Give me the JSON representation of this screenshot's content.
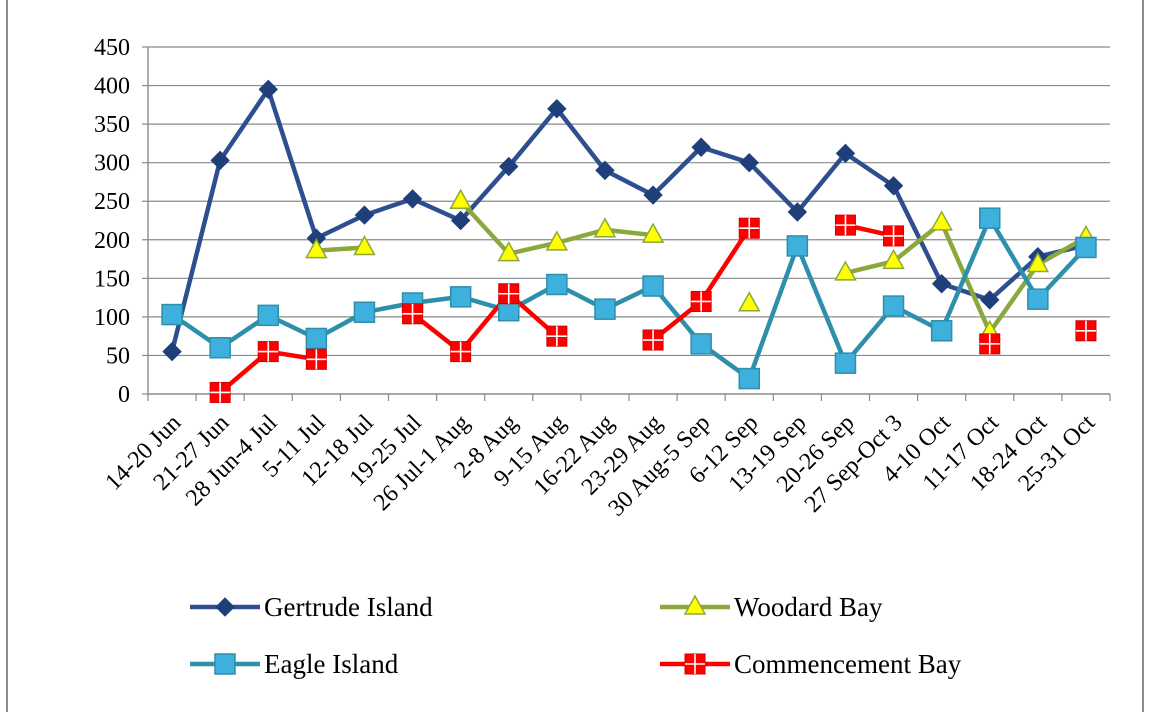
{
  "chart_data": {
    "type": "line",
    "categories": [
      "14-20 Jun",
      "21-27 Jun",
      "28 Jun-4 Jul",
      "5-11 Jul",
      "12-18 Jul",
      "19-25 Jul",
      "26 Jul-1 Aug",
      "2-8 Aug",
      "9-15 Aug",
      "16-22 Aug",
      "23-29 Aug",
      "30 Aug-5 Sep",
      "6-12 Sep",
      "13-19 Sep",
      "20-26 Sep",
      "27 Sep-Oct 3",
      "4-10 Oct",
      "11-17 Oct",
      "18-24 Oct",
      "25-31 Oct"
    ],
    "ylim": [
      0,
      450
    ],
    "yticks": [
      0,
      50,
      100,
      150,
      200,
      250,
      300,
      350,
      400,
      450
    ],
    "grid": true,
    "legend_position": "bottom",
    "series": [
      {
        "name": "Gertrude Island",
        "color": "#2E4F8F",
        "marker": "diamond",
        "values": [
          55,
          303,
          395,
          202,
          232,
          253,
          225,
          295,
          370,
          290,
          258,
          320,
          300,
          236,
          312,
          270,
          143,
          122,
          178,
          193
        ]
      },
      {
        "name": "Woodard Bay",
        "color": "#8BA83C",
        "marker": "triangle",
        "values": [
          null,
          null,
          null,
          186,
          190,
          null,
          250,
          182,
          196,
          213,
          206,
          null,
          117,
          null,
          157,
          172,
          222,
          80,
          168,
          203
        ]
      },
      {
        "name": "Eagle Island",
        "color": "#2E8FAA",
        "marker": "square",
        "values": [
          103,
          60,
          102,
          72,
          106,
          118,
          126,
          108,
          142,
          110,
          140,
          65,
          20,
          192,
          40,
          114,
          82,
          228,
          123,
          190
        ]
      },
      {
        "name": "Commencement Bay",
        "color": "#FF0000",
        "marker": "square-cross",
        "values": [
          null,
          2,
          55,
          45,
          null,
          104,
          55,
          130,
          75,
          null,
          70,
          120,
          215,
          null,
          219,
          205,
          null,
          65,
          null,
          82
        ]
      }
    ]
  }
}
